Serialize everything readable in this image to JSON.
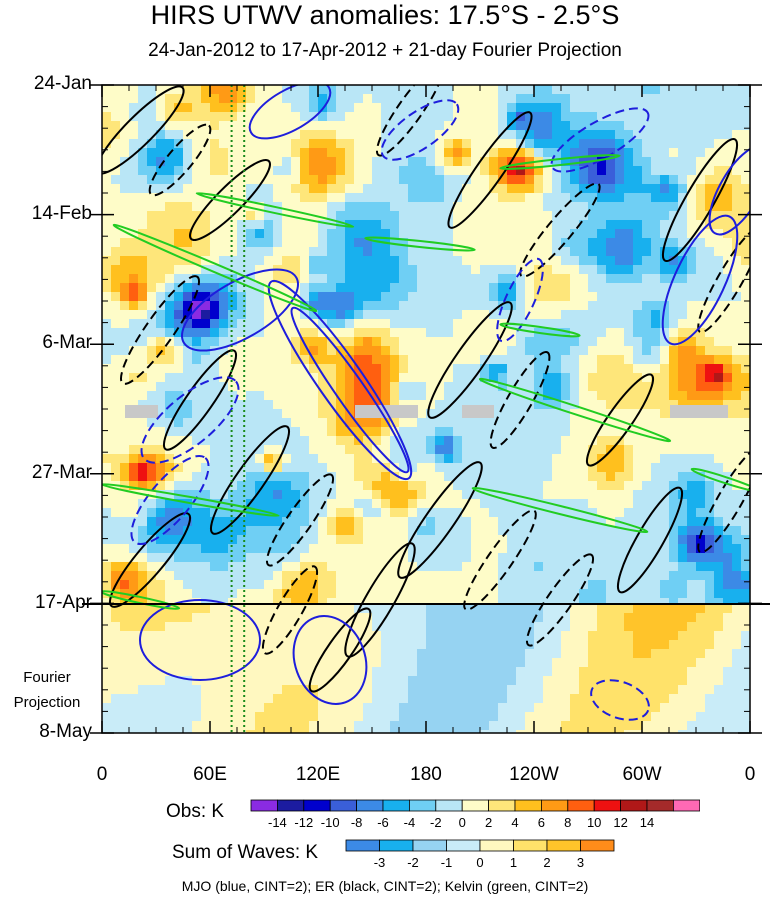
{
  "chart_data": {
    "type": "heatmap",
    "title": "HIRS UTWV anomalies: 17.5°S - 2.5°S",
    "subtitle": "24-Jan-2012 to 17-Apr-2012 + 21-day Fourier Projection",
    "xlabel": "",
    "ylabel": "",
    "x_ticks": [
      "0",
      "60E",
      "120E",
      "180",
      "120W",
      "60W",
      "0"
    ],
    "x_values_deg_east": [
      0,
      60,
      120,
      180,
      240,
      300,
      360
    ],
    "y_ticks": [
      "24-Jan",
      "14-Feb",
      "6-Mar",
      "27-Mar",
      "17-Apr",
      "8-May"
    ],
    "y_range": [
      "24-Jan-2012",
      "8-May-2012"
    ],
    "observation_end": "17-Apr",
    "projection_label": [
      "Fourier",
      "Projection"
    ],
    "colorbars": [
      {
        "label": "Obs: K",
        "ticks": [
          "-14",
          "-12",
          "-10",
          "-8",
          "-6",
          "-4",
          "-2",
          "0",
          "2",
          "4",
          "6",
          "8",
          "10",
          "12",
          "14"
        ],
        "colors": [
          "#8a2be2",
          "#1c1ca0",
          "#0000cd",
          "#3a5fd9",
          "#3c8ae6",
          "#18b0ee",
          "#6fcff4",
          "#b9e6f6",
          "#fefcc8",
          "#fee67a",
          "#ffc01e",
          "#ff9a15",
          "#ff5f10",
          "#ee1111",
          "#b01818",
          "#a52a2a",
          "#ff69b4"
        ]
      },
      {
        "label": "Sum of Waves: K",
        "ticks": [
          "-3",
          "-2",
          "-1",
          "0",
          "1",
          "2",
          "3"
        ],
        "colors": [
          "#3c8ae6",
          "#18b0ee",
          "#96d3f2",
          "#c9ecf8",
          "#fff8c0",
          "#ffe26a",
          "#ffc42a",
          "#ff8c1a"
        ]
      }
    ],
    "contour_legend": "MJO (blue, CINT=2); ER (black, CINT=2); Kelvin (green, CINT=2)",
    "series": [
      {
        "name": "MJO",
        "color": "#1e1edc",
        "cint": 2
      },
      {
        "name": "ER",
        "color": "#000000",
        "cint": 2
      },
      {
        "name": "Kelvin",
        "color": "#22cc22",
        "cint": 2
      }
    ],
    "reference_lines_deg_east": [
      72,
      79
    ]
  }
}
